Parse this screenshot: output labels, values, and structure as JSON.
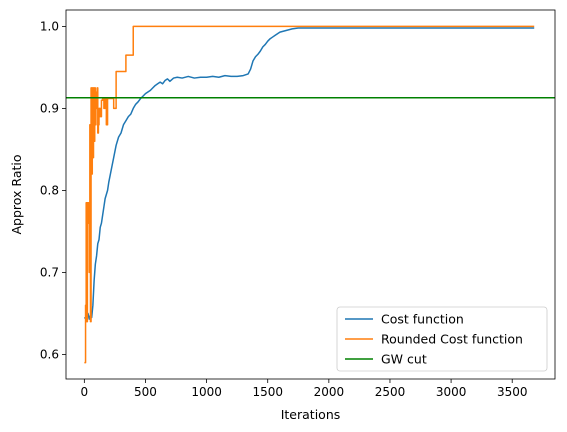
{
  "chart_data": {
    "type": "line",
    "xlabel": "Iterations",
    "ylabel": "Approx Ratio",
    "xlim": [
      -150,
      3850
    ],
    "ylim": [
      0.57,
      1.02
    ],
    "xticks": [
      0,
      500,
      1000,
      1500,
      2000,
      2500,
      3000,
      3500
    ],
    "xtick_labels": [
      "0",
      "500",
      "1000",
      "1500",
      "2000",
      "2500",
      "3000",
      "3500"
    ],
    "yticks": [
      0.6,
      0.7,
      0.8,
      0.9,
      1.0
    ],
    "ytick_labels": [
      "0.6",
      "0.7",
      "0.8",
      "0.9",
      "1.0"
    ],
    "grid": false,
    "legend_position": "bottom-right",
    "series": [
      {
        "name": "Cost function",
        "color": "#1f77b4",
        "style": "line",
        "x": [
          0,
          10,
          20,
          30,
          40,
          50,
          60,
          70,
          80,
          90,
          100,
          110,
          120,
          130,
          140,
          150,
          160,
          170,
          180,
          190,
          200,
          220,
          240,
          260,
          280,
          300,
          320,
          340,
          360,
          380,
          400,
          420,
          440,
          460,
          480,
          500,
          520,
          540,
          560,
          580,
          600,
          620,
          640,
          660,
          680,
          700,
          730,
          760,
          800,
          850,
          900,
          950,
          1000,
          1050,
          1100,
          1150,
          1200,
          1250,
          1300,
          1340,
          1360,
          1380,
          1400,
          1420,
          1440,
          1460,
          1480,
          1500,
          1520,
          1540,
          1560,
          1580,
          1600,
          1650,
          1700,
          1750,
          1800,
          1900,
          2000,
          2500,
          3000,
          3500,
          3680
        ],
        "y": [
          0.644,
          0.645,
          0.642,
          0.65,
          0.643,
          0.648,
          0.645,
          0.66,
          0.69,
          0.71,
          0.72,
          0.735,
          0.74,
          0.755,
          0.76,
          0.77,
          0.78,
          0.79,
          0.795,
          0.8,
          0.81,
          0.825,
          0.84,
          0.855,
          0.865,
          0.87,
          0.88,
          0.885,
          0.89,
          0.893,
          0.9,
          0.905,
          0.908,
          0.912,
          0.915,
          0.918,
          0.92,
          0.922,
          0.925,
          0.928,
          0.93,
          0.932,
          0.93,
          0.934,
          0.936,
          0.933,
          0.937,
          0.938,
          0.937,
          0.939,
          0.937,
          0.938,
          0.938,
          0.939,
          0.938,
          0.94,
          0.939,
          0.939,
          0.94,
          0.942,
          0.948,
          0.958,
          0.963,
          0.966,
          0.97,
          0.975,
          0.978,
          0.982,
          0.985,
          0.987,
          0.989,
          0.991,
          0.993,
          0.995,
          0.997,
          0.998,
          0.998,
          0.998,
          0.998,
          0.998,
          0.998,
          0.998,
          0.998
        ]
      },
      {
        "name": "Rounded Cost function",
        "color": "#ff7f0e",
        "style": "step",
        "x": [
          0,
          10,
          15,
          20,
          25,
          30,
          35,
          40,
          45,
          50,
          55,
          60,
          65,
          70,
          75,
          80,
          85,
          90,
          95,
          100,
          105,
          110,
          115,
          120,
          130,
          140,
          150,
          160,
          170,
          180,
          190,
          200,
          220,
          240,
          260,
          280,
          300,
          320,
          340,
          360,
          380,
          400,
          3680
        ],
        "y": [
          0.59,
          0.66,
          0.785,
          0.64,
          0.785,
          0.76,
          0.785,
          0.7,
          0.88,
          0.64,
          0.925,
          0.82,
          0.925,
          0.84,
          0.925,
          0.86,
          0.925,
          0.88,
          0.9,
          0.92,
          0.925,
          0.87,
          0.88,
          0.9,
          0.89,
          0.91,
          0.912,
          0.9,
          0.912,
          0.88,
          0.912,
          0.912,
          0.912,
          0.9,
          0.945,
          0.945,
          0.945,
          0.945,
          0.965,
          0.965,
          0.965,
          1.0,
          1.0
        ]
      },
      {
        "name": "GW cut",
        "color": "#008000",
        "style": "hline",
        "y": 0.913
      }
    ]
  }
}
